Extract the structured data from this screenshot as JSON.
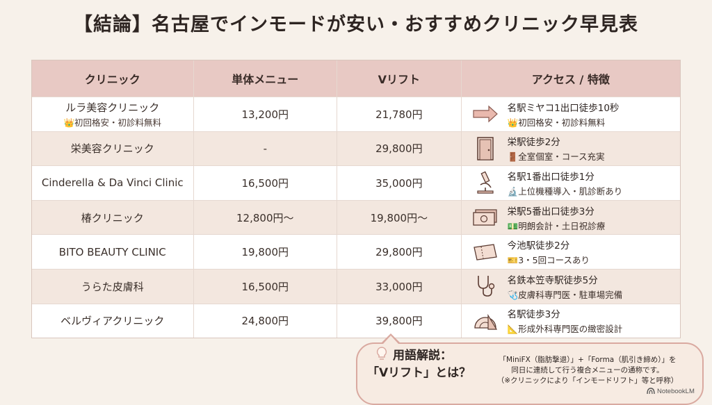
{
  "title": "【結論】名古屋でインモードが安い・おすすめクリニック早見表",
  "table": {
    "headers": [
      "クリニック",
      "単体メニュー",
      "Vリフト",
      "アクセス / 特徴"
    ],
    "rows": [
      {
        "clinic": "ルラ美容クリニック",
        "clinic_sub": "👑初回格安・初診料無料",
        "single": "13,200円",
        "vlift": "21,780円",
        "access": "名駅ミヤコ1出口徒歩10秒",
        "feature": "👑初回格安・初診料無料",
        "icon": "arrow-icon"
      },
      {
        "clinic": "栄美容クリニック",
        "clinic_sub": "",
        "single": "-",
        "vlift": "29,800円",
        "access": "栄駅徒歩2分",
        "feature": "🚪全室個室・コース充実",
        "icon": "door-icon"
      },
      {
        "clinic": "Cinderella & Da Vinci Clinic",
        "clinic_sub": "",
        "single": "16,500円",
        "vlift": "35,000円",
        "access": "名駅1番出口徒歩1分",
        "feature": "🔬上位機種導入・肌診断あり",
        "icon": "microscope-icon"
      },
      {
        "clinic": "椿クリニック",
        "clinic_sub": "",
        "single": "12,800円〜",
        "vlift": "19,800円〜",
        "access": "栄駅5番出口徒歩3分",
        "feature": "💵明朗会計・土日祝診療",
        "icon": "money-icon"
      },
      {
        "clinic": "BITO BEAUTY CLINIC",
        "clinic_sub": "",
        "single": "19,800円",
        "vlift": "29,800円",
        "access": "今池駅徒歩2分",
        "feature": "🎫3・5回コースあり",
        "icon": "ticket-icon"
      },
      {
        "clinic": "うらた皮膚科",
        "clinic_sub": "",
        "single": "16,500円",
        "vlift": "33,000円",
        "access": "名鉄本笠寺駅徒歩5分",
        "feature": "🩺皮膚科専門医・駐車場完備",
        "icon": "stethoscope-icon"
      },
      {
        "clinic": "ベルヴィアクリニック",
        "clinic_sub": "",
        "single": "24,800円",
        "vlift": "39,800円",
        "access": "名駅徒歩3分",
        "feature": "📐形成外科専門医の緻密設計",
        "icon": "ruler-icon"
      }
    ]
  },
  "callout": {
    "title_line1": "用語解説：",
    "title_line2": "「Vリフト」とは？",
    "body_line1": "「MiniFX（脂肪撃退）」+「Forma（肌引き締め）」を",
    "body_line2": "同日に連続して行う複合メニューの通称です。",
    "body_line3": "（※クリニックにより「インモードリフト」等と呼称）"
  },
  "badge": "NotebookLM",
  "colors": {
    "header_bg": "#e8c9c4",
    "row_alt": "#f3e7df",
    "accent": "#d9a9a0"
  }
}
